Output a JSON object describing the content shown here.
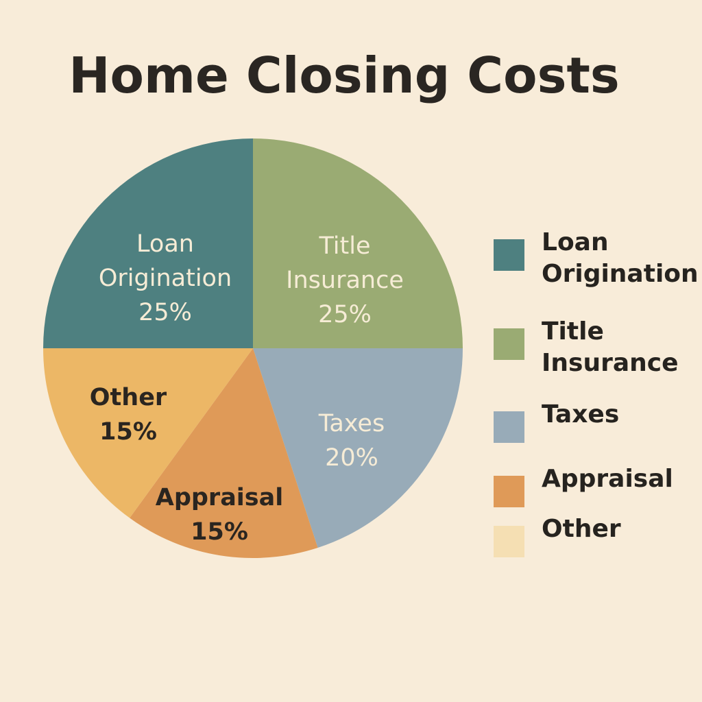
{
  "chart_data": {
    "type": "pie",
    "title": "Home Closing Costs",
    "unit": "%",
    "categories": [
      "Loan Origination",
      "Title Insurance",
      "Taxes",
      "Appraisal",
      "Other"
    ],
    "values": [
      25,
      25,
      20,
      15,
      15
    ],
    "slice_labels": [
      {
        "name": "Loan Origination",
        "lines": [
          "Loan",
          "Origination"
        ],
        "value_text": "25%"
      },
      {
        "name": "Title Insurance",
        "lines": [
          "Title",
          "Insurance"
        ],
        "value_text": "25%"
      },
      {
        "name": "Taxes",
        "lines": [
          "Taxes"
        ],
        "value_text": "20%"
      },
      {
        "name": "Appraisal",
        "lines": [
          "Appraisal"
        ],
        "value_text": "15%"
      },
      {
        "name": "Other",
        "lines": [
          "Other"
        ],
        "value_text": "15%"
      }
    ],
    "colors": [
      "#4e8080",
      "#9aab73",
      "#98abb8",
      "#df9a58",
      "#ecb766"
    ],
    "legend": {
      "placement": "right",
      "entries": [
        {
          "lines": [
            "Loan",
            "Origination"
          ],
          "color": "#4e8080"
        },
        {
          "lines": [
            "Title",
            "Insurance"
          ],
          "color": "#9aab73"
        },
        {
          "lines": [
            "Taxes"
          ],
          "color": "#98abb8"
        },
        {
          "lines": [
            "Appraisal"
          ],
          "color": "#df9a58"
        },
        {
          "lines": [
            "Other"
          ],
          "color": "#f5dfb3"
        }
      ]
    }
  }
}
